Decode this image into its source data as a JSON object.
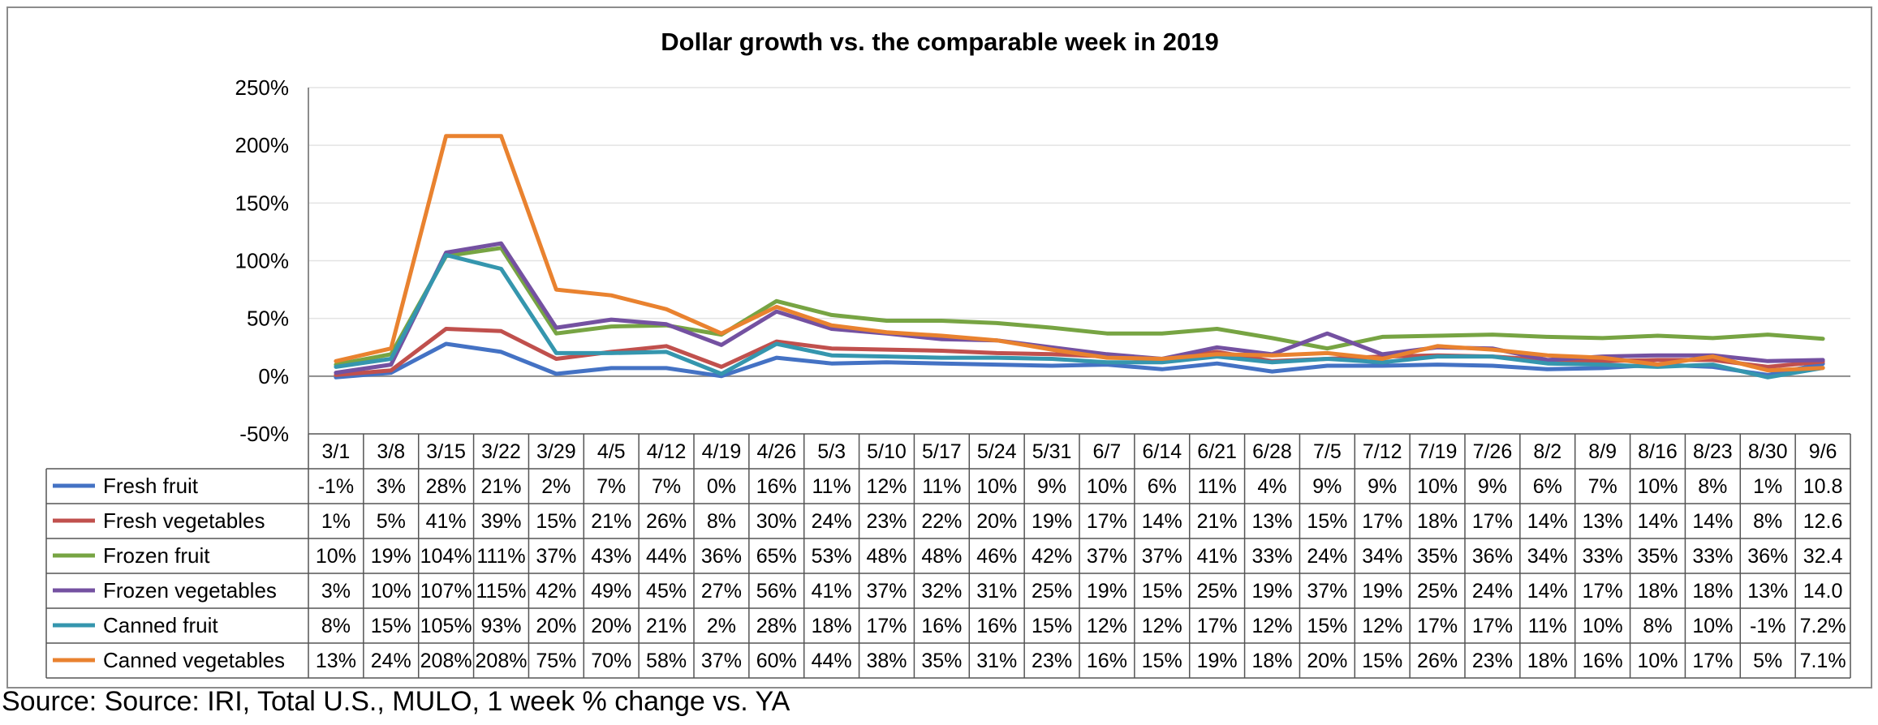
{
  "source_text": "Source: Source: IRI, Total U.S., MULO, 1 week % change vs. YA",
  "chart_data": {
    "type": "line",
    "title": "Dollar growth vs. the comparable week in 2019",
    "xlabel": "",
    "ylabel": "",
    "ylim": [
      -50,
      250
    ],
    "yticks": [
      "-50%",
      "0%",
      "50%",
      "100%",
      "150%",
      "200%",
      "250%"
    ],
    "grid": true,
    "legend": "data-table",
    "categories": [
      "3/1",
      "3/8",
      "3/15",
      "3/22",
      "3/29",
      "4/5",
      "4/12",
      "4/19",
      "4/26",
      "5/3",
      "5/10",
      "5/17",
      "5/24",
      "5/31",
      "6/7",
      "6/14",
      "6/21",
      "6/28",
      "7/5",
      "7/12",
      "7/19",
      "7/26",
      "8/2",
      "8/9",
      "8/16",
      "8/23",
      "8/30",
      "9/6"
    ],
    "series": [
      {
        "name": "Fresh fruit",
        "color": "#4472C4",
        "values": [
          -1,
          3,
          28,
          21,
          2,
          7,
          7,
          0,
          16,
          11,
          12,
          11,
          10,
          9,
          10,
          6,
          11,
          4,
          9,
          9,
          10,
          9,
          6,
          7,
          10,
          8,
          1,
          10.8
        ],
        "labels": [
          "-1%",
          "3%",
          "28%",
          "21%",
          "2%",
          "7%",
          "7%",
          "0%",
          "16%",
          "11%",
          "12%",
          "11%",
          "10%",
          "9%",
          "10%",
          "6%",
          "11%",
          "4%",
          "9%",
          "9%",
          "10%",
          "9%",
          "6%",
          "7%",
          "10%",
          "8%",
          "1%",
          "10.8"
        ]
      },
      {
        "name": "Fresh vegetables",
        "color": "#C0504D",
        "values": [
          1,
          5,
          41,
          39,
          15,
          21,
          26,
          8,
          30,
          24,
          23,
          22,
          20,
          19,
          17,
          14,
          21,
          13,
          15,
          17,
          18,
          17,
          14,
          13,
          14,
          14,
          8,
          12.6
        ],
        "labels": [
          "1%",
          "5%",
          "41%",
          "39%",
          "15%",
          "21%",
          "26%",
          "8%",
          "30%",
          "24%",
          "23%",
          "22%",
          "20%",
          "19%",
          "17%",
          "14%",
          "21%",
          "13%",
          "15%",
          "17%",
          "18%",
          "17%",
          "14%",
          "13%",
          "14%",
          "14%",
          "8%",
          "12.6"
        ]
      },
      {
        "name": "Frozen fruit",
        "color": "#77A443",
        "values": [
          10,
          19,
          104,
          111,
          37,
          43,
          44,
          36,
          65,
          53,
          48,
          48,
          46,
          42,
          37,
          37,
          41,
          33,
          24,
          34,
          35,
          36,
          34,
          33,
          35,
          33,
          36,
          32.4
        ],
        "labels": [
          "10%",
          "19%",
          "104%",
          "111%",
          "37%",
          "43%",
          "44%",
          "36%",
          "65%",
          "53%",
          "48%",
          "48%",
          "46%",
          "42%",
          "37%",
          "37%",
          "41%",
          "33%",
          "24%",
          "34%",
          "35%",
          "36%",
          "34%",
          "33%",
          "35%",
          "33%",
          "36%",
          "32.4"
        ]
      },
      {
        "name": "Frozen vegetables",
        "color": "#7451A1",
        "values": [
          3,
          10,
          107,
          115,
          42,
          49,
          45,
          27,
          56,
          41,
          37,
          32,
          31,
          25,
          19,
          15,
          25,
          19,
          37,
          19,
          25,
          24,
          14,
          17,
          18,
          18,
          13,
          14.0
        ],
        "labels": [
          "3%",
          "10%",
          "107%",
          "115%",
          "42%",
          "49%",
          "45%",
          "27%",
          "56%",
          "41%",
          "37%",
          "32%",
          "31%",
          "25%",
          "19%",
          "15%",
          "25%",
          "19%",
          "37%",
          "19%",
          "25%",
          "24%",
          "14%",
          "17%",
          "18%",
          "18%",
          "13%",
          "14.0"
        ]
      },
      {
        "name": "Canned fruit",
        "color": "#3596AE",
        "values": [
          8,
          15,
          105,
          93,
          20,
          20,
          21,
          2,
          28,
          18,
          17,
          16,
          16,
          15,
          12,
          12,
          17,
          12,
          15,
          12,
          17,
          17,
          11,
          10,
          8,
          10,
          -1,
          7.2
        ],
        "labels": [
          "8%",
          "15%",
          "105%",
          "93%",
          "20%",
          "20%",
          "21%",
          "2%",
          "28%",
          "18%",
          "17%",
          "16%",
          "16%",
          "15%",
          "12%",
          "12%",
          "17%",
          "12%",
          "15%",
          "12%",
          "17%",
          "17%",
          "11%",
          "10%",
          "8%",
          "10%",
          "-1%",
          "7.2%"
        ]
      },
      {
        "name": "Canned vegetables",
        "color": "#E9822F",
        "values": [
          13,
          24,
          208,
          208,
          75,
          70,
          58,
          37,
          60,
          44,
          38,
          35,
          31,
          23,
          16,
          15,
          19,
          18,
          20,
          15,
          26,
          23,
          18,
          16,
          10,
          17,
          5,
          7.1
        ],
        "labels": [
          "13%",
          "24%",
          "208%",
          "208%",
          "75%",
          "70%",
          "58%",
          "37%",
          "60%",
          "44%",
          "38%",
          "35%",
          "31%",
          "23%",
          "16%",
          "15%",
          "19%",
          "18%",
          "20%",
          "15%",
          "26%",
          "23%",
          "18%",
          "16%",
          "10%",
          "17%",
          "5%",
          "7.1%"
        ]
      }
    ]
  }
}
